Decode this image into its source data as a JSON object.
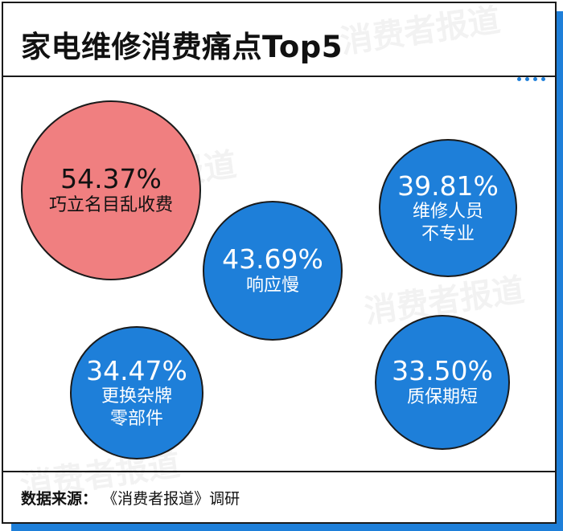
{
  "header": {
    "title": "家电维修消费痛点Top5"
  },
  "watermark": {
    "text": "消费者报道"
  },
  "footer": {
    "source_label": "数据来源：",
    "source_value": "《消费者报道》调研"
  },
  "colors": {
    "highlight": "#f07f80",
    "primary": "#1e7fd9",
    "border": "#1a1a1a"
  },
  "chart_data": {
    "type": "bubble",
    "title": "家电维修消费痛点Top5",
    "items": [
      {
        "value": "54.37%",
        "pct": 54.37,
        "lines": [
          "巧立名目乱收费"
        ],
        "highlight": true
      },
      {
        "value": "43.69%",
        "pct": 43.69,
        "lines": [
          "响应慢"
        ],
        "highlight": false
      },
      {
        "value": "39.81%",
        "pct": 39.81,
        "lines": [
          "维修人员",
          "不专业"
        ],
        "highlight": false
      },
      {
        "value": "34.47%",
        "pct": 34.47,
        "lines": [
          "更换杂牌",
          "零部件"
        ],
        "highlight": false
      },
      {
        "value": "33.50%",
        "pct": 33.5,
        "lines": [
          "质保期短"
        ],
        "highlight": false
      }
    ]
  }
}
